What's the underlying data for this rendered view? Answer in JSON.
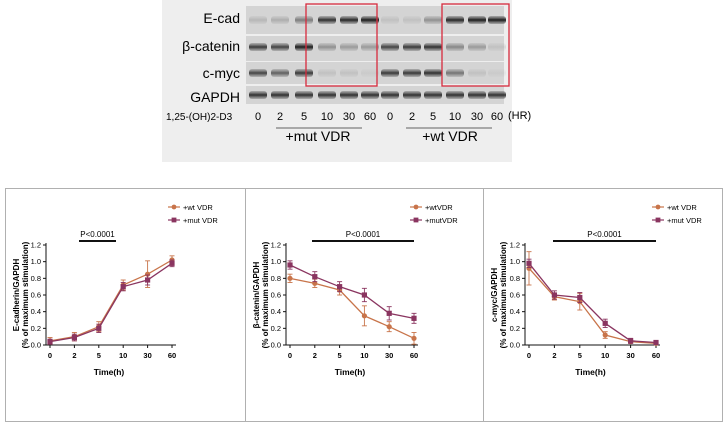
{
  "blot": {
    "row_labels": [
      "E-cad",
      "β-catenin",
      "c-myc",
      "GAPDH"
    ],
    "treatment_label": "1,25-(OH)2-D3",
    "unit_label": "(HR)",
    "time_points": [
      "0",
      "2",
      "5",
      "10",
      "30",
      "60",
      "0",
      "2",
      "5",
      "10",
      "30",
      "60"
    ],
    "group_labels": [
      "+mut VDR",
      "+wt VDR"
    ],
    "highlight_color": "#d62a3c"
  },
  "chart_data": [
    {
      "type": "line",
      "title": "",
      "annotation": "P<0.0001",
      "xlabel": "Time(h)",
      "ylabel": [
        "E-cadherin/GAPDH",
        "(% of maximum stimulation)"
      ],
      "categories": [
        "0",
        "2",
        "5",
        "10",
        "30",
        "60"
      ],
      "ylim": [
        0,
        1.2
      ],
      "yticks": [
        "0.0",
        "0.2",
        "0.4",
        "0.6",
        "0.8",
        "1.0",
        "1.2"
      ],
      "legend": [
        "+wt VDR",
        "+mut VDR"
      ],
      "series": [
        {
          "name": "+wt VDR",
          "color": "#c8744a",
          "marker": "circle",
          "values": [
            0.05,
            0.1,
            0.22,
            0.72,
            0.85,
            1.02
          ],
          "errors": [
            0.04,
            0.05,
            0.06,
            0.06,
            0.16,
            0.05
          ]
        },
        {
          "name": "+mut VDR",
          "color": "#8a3560",
          "marker": "square",
          "values": [
            0.04,
            0.09,
            0.2,
            0.7,
            0.78,
            0.98
          ],
          "errors": [
            0.03,
            0.04,
            0.05,
            0.05,
            0.06,
            0.04
          ]
        }
      ]
    },
    {
      "type": "line",
      "title": "",
      "annotation": "P<0.0001",
      "xlabel": "Time(h)",
      "ylabel": [
        "β-catenin/GAPDH",
        "(% of maximum stimulation)"
      ],
      "categories": [
        "0",
        "2",
        "5",
        "10",
        "30",
        "60"
      ],
      "ylim": [
        0,
        1.2
      ],
      "yticks": [
        "0.0",
        "0.2",
        "0.4",
        "0.6",
        "0.8",
        "1.0",
        "1.2"
      ],
      "legend": [
        "+wtVDR",
        "+mutVDR"
      ],
      "series": [
        {
          "name": "+wtVDR",
          "color": "#c8744a",
          "marker": "circle",
          "values": [
            0.8,
            0.74,
            0.66,
            0.35,
            0.22,
            0.08
          ],
          "errors": [
            0.05,
            0.05,
            0.06,
            0.12,
            0.06,
            0.07
          ]
        },
        {
          "name": "+mutVDR",
          "color": "#8a3560",
          "marker": "square",
          "values": [
            0.96,
            0.82,
            0.7,
            0.6,
            0.38,
            0.32
          ],
          "errors": [
            0.05,
            0.06,
            0.06,
            0.08,
            0.08,
            0.06
          ]
        }
      ]
    },
    {
      "type": "line",
      "title": "",
      "annotation": "P<0.0001",
      "xlabel": "Time(h)",
      "ylabel": [
        "c-myc/GAPDH",
        "(% of maximum stimulation)"
      ],
      "categories": [
        "0",
        "2",
        "5",
        "10",
        "30",
        "60"
      ],
      "ylim": [
        0,
        1.2
      ],
      "yticks": [
        "0.0",
        "0.2",
        "0.4",
        "0.6",
        "0.8",
        "1.0",
        "1.2"
      ],
      "legend": [
        "+wt VDR",
        "+mut VDR"
      ],
      "series": [
        {
          "name": "+wt VDR",
          "color": "#c8744a",
          "marker": "circle",
          "values": [
            0.92,
            0.58,
            0.52,
            0.12,
            0.04,
            0.02
          ],
          "errors": [
            0.2,
            0.04,
            0.1,
            0.04,
            0.02,
            0.01
          ]
        },
        {
          "name": "+mut VDR",
          "color": "#8a3560",
          "marker": "square",
          "values": [
            0.98,
            0.6,
            0.57,
            0.26,
            0.05,
            0.03
          ],
          "errors": [
            0.05,
            0.05,
            0.06,
            0.05,
            0.03,
            0.01
          ]
        }
      ]
    }
  ]
}
